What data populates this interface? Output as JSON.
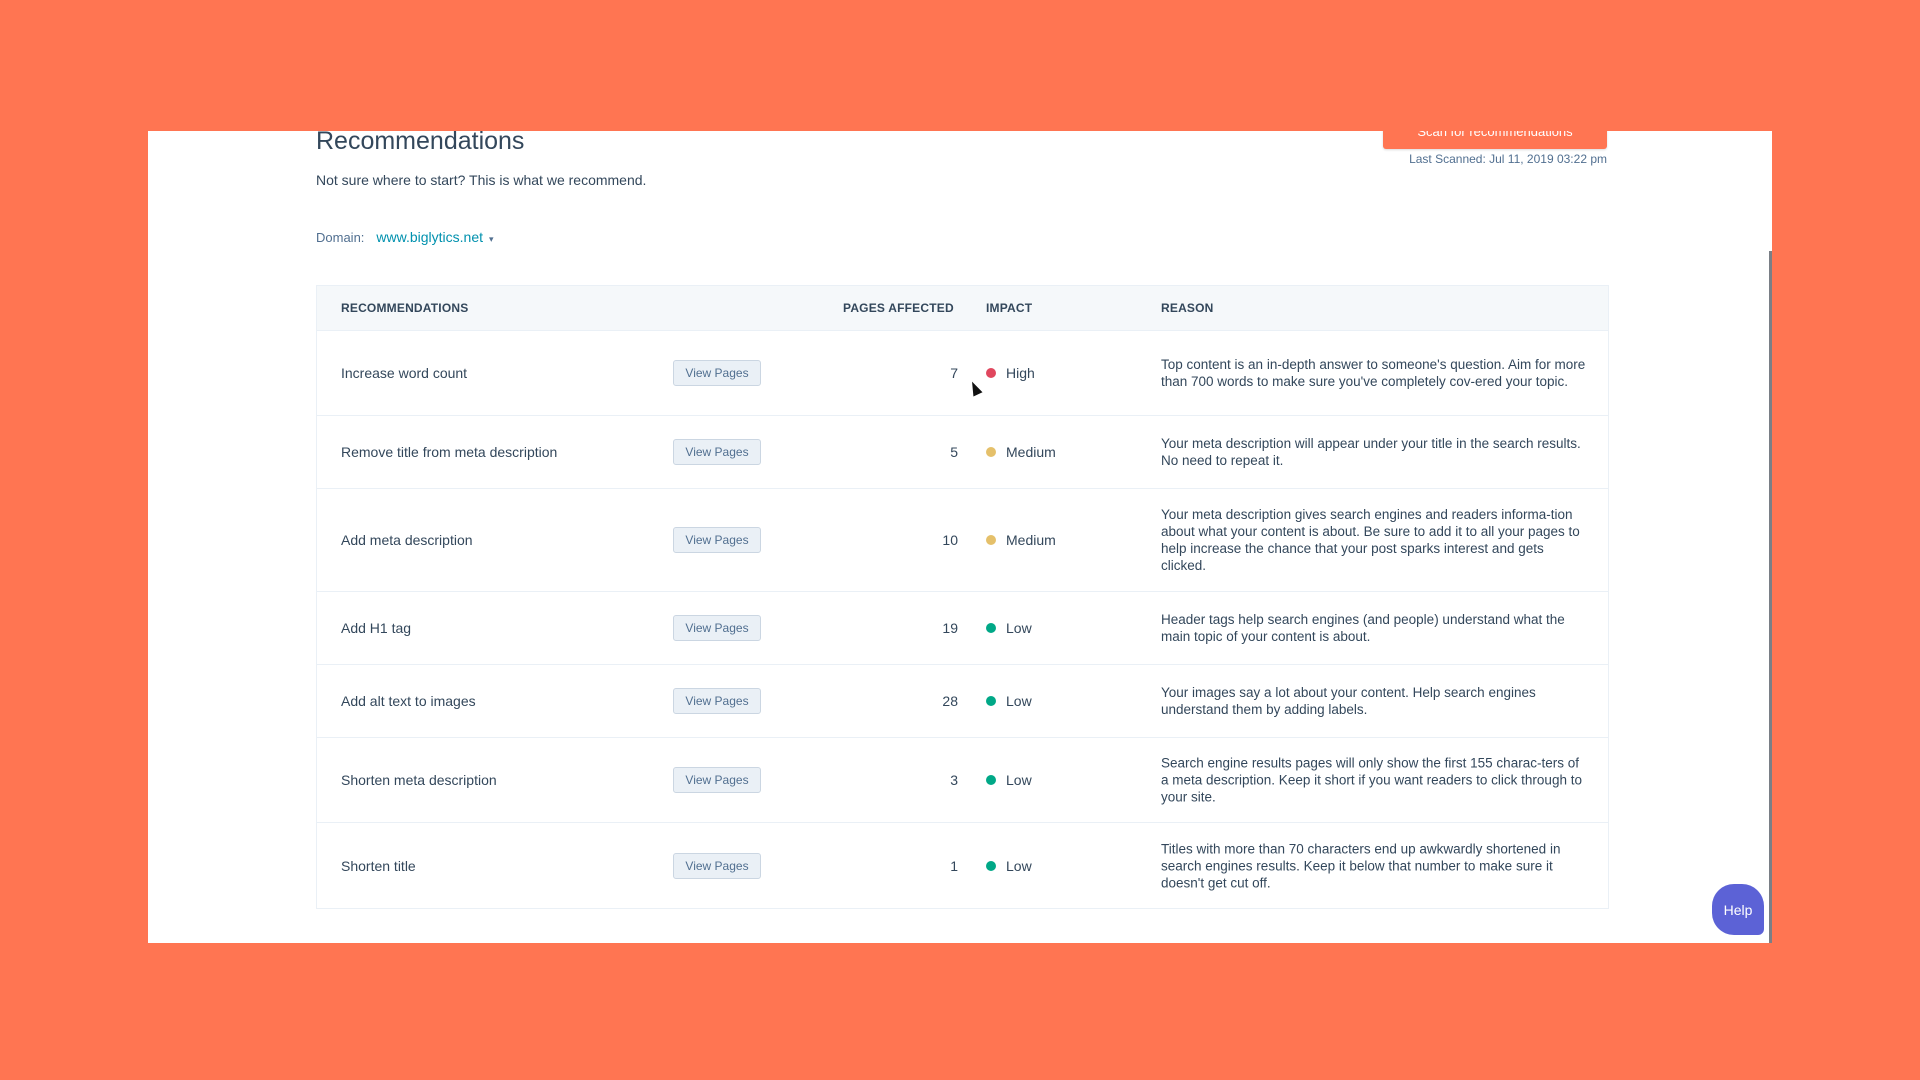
{
  "header": {
    "title": "Recommendations",
    "subtitle": "Not sure where to start? This is what we recommend.",
    "scan_button": "Scan for recommendations",
    "last_scanned": "Last Scanned: Jul 11, 2019 03:22 pm"
  },
  "domain": {
    "label": "Domain:",
    "value": "www.biglytics.net",
    "caret": "▾"
  },
  "table": {
    "columns": [
      "RECOMMENDATIONS",
      "PAGES AFFECTED",
      "IMPACT",
      "REASON"
    ],
    "button_label": "View Pages",
    "rows": [
      {
        "recommendation": "Increase word count",
        "button": "View Pages",
        "pages": "7",
        "impact": "High",
        "impact_color": "#e0475e",
        "reason": "Top content is an in-depth answer to someone's question. Aim for more than 700 words to make sure you've completely cov-ered your topic."
      },
      {
        "recommendation": "Remove title from meta description",
        "button": "View Pages",
        "pages": "5",
        "impact": "Medium",
        "impact_color": "#e5c06a",
        "reason": "Your meta description will appear under your title in the search results. No need to repeat it."
      },
      {
        "recommendation": "Add meta description",
        "button": "View Pages",
        "pages": "10",
        "impact": "Medium",
        "impact_color": "#e5c06a",
        "reason": "Your meta description gives search engines and readers informa-tion about what your content is about. Be sure to add it to all your pages to help increase the chance that your post sparks interest and gets clicked."
      },
      {
        "recommendation": "Add H1 tag",
        "button": "View Pages",
        "pages": "19",
        "impact": "Low",
        "impact_color": "#00a887",
        "reason": "Header tags help search engines (and people) understand what the main topic of your content is about."
      },
      {
        "recommendation": "Add alt text to images",
        "button": "View Pages",
        "pages": "28",
        "impact": "Low",
        "impact_color": "#00a887",
        "reason": "Your images say a lot about your content. Help search engines understand them by adding labels."
      },
      {
        "recommendation": "Shorten meta description",
        "button": "View Pages",
        "pages": "3",
        "impact": "Low",
        "impact_color": "#00a887",
        "reason": "Search engine results pages will only show the first 155 charac-ters of a meta description. Keep it short if you want readers to click through to your site."
      },
      {
        "recommendation": "Shorten title",
        "button": "View Pages",
        "pages": "1",
        "impact": "Low",
        "impact_color": "#00a887",
        "reason": "Titles with more than 70 characters end up awkwardly shortened in search engines results. Keep it below that number to make sure it doesn't get cut off."
      }
    ]
  },
  "help_button": "Help",
  "colors": {
    "background": "#FF7552",
    "accent": "#FF7552",
    "link": "#0091ae",
    "help": "#5c62d6"
  }
}
